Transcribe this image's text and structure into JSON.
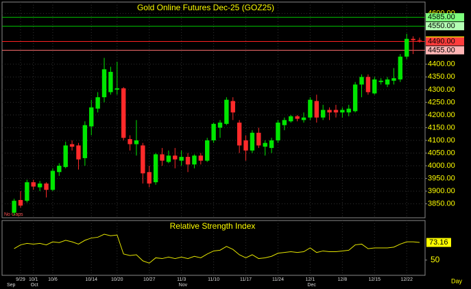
{
  "chart_data": {
    "type": "candlestick",
    "title": "Gold Online Futures Dec-25 (GOZ25)",
    "annotation": "No Gaps",
    "x_unit": "Day",
    "categories": [
      null,
      "9/29",
      null,
      "10/1",
      null,
      null,
      "10/6",
      null,
      null,
      null,
      null,
      null,
      "10/14",
      null,
      null,
      null,
      "10/20",
      null,
      null,
      null,
      null,
      "10/27",
      null,
      null,
      null,
      null,
      "11/3",
      null,
      null,
      null,
      null,
      "11/10",
      null,
      null,
      null,
      null,
      "11/17",
      null,
      null,
      null,
      null,
      "11/24",
      null,
      null,
      null,
      null,
      "12/1",
      null,
      null,
      null,
      null,
      "12/8",
      null,
      null,
      null,
      null,
      "12/15",
      null,
      null,
      null,
      null,
      "12/22",
      null,
      null
    ],
    "months": [
      "Sep",
      null,
      null,
      "Oct",
      null,
      null,
      null,
      null,
      null,
      null,
      null,
      null,
      null,
      null,
      null,
      null,
      null,
      null,
      null,
      null,
      null,
      null,
      null,
      null,
      null,
      null,
      "Nov",
      null,
      null,
      null,
      null,
      null,
      null,
      null,
      null,
      null,
      null,
      null,
      null,
      null,
      null,
      null,
      null,
      null,
      null,
      null,
      "Dec",
      null,
      null,
      null,
      null,
      null,
      null,
      null,
      null,
      null,
      null,
      null,
      null,
      null,
      null,
      null,
      null,
      null
    ],
    "open": [
      3815,
      3865,
      3862,
      3935,
      3915,
      3930,
      3905,
      3975,
      3995,
      4085,
      4080,
      4030,
      4155,
      4225,
      4270,
      4290,
      4300,
      4305,
      4105,
      4085,
      4080,
      3975,
      3935,
      4045,
      4015,
      4040,
      4020,
      4035,
      4005,
      4040,
      4020,
      4100,
      4150,
      4165,
      4255,
      4170,
      4100,
      4060,
      4130,
      4075,
      4070,
      4100,
      4160,
      4175,
      4195,
      4180,
      4190,
      4255,
      4190,
      4220,
      4220,
      4210,
      4210,
      4215,
      4320,
      4350,
      4285,
      4330,
      4320,
      4335,
      4340,
      4430,
      4500,
      4495
    ],
    "high": [
      3870,
      3900,
      3945,
      3945,
      3940,
      3935,
      3990,
      4010,
      4095,
      4100,
      4090,
      4175,
      4260,
      4290,
      4425,
      4390,
      4410,
      4310,
      4120,
      4180,
      4090,
      4000,
      4050,
      4070,
      4060,
      4070,
      4060,
      4050,
      4045,
      4050,
      4110,
      4170,
      4180,
      4270,
      4270,
      4180,
      4120,
      4140,
      4150,
      4100,
      4110,
      4180,
      4190,
      4200,
      4200,
      4210,
      4270,
      4280,
      4240,
      4230,
      4240,
      4230,
      4240,
      4330,
      4360,
      4360,
      4350,
      4345,
      4350,
      4385,
      4440,
      4520,
      4510,
      4505
    ],
    "low": [
      3805,
      3835,
      3855,
      3905,
      3900,
      3875,
      3900,
      3960,
      3990,
      4060,
      3985,
      4000,
      4120,
      4210,
      4250,
      4280,
      4280,
      4100,
      4060,
      4040,
      3930,
      3915,
      3925,
      4000,
      4010,
      3990,
      4000,
      3975,
      3990,
      4005,
      4015,
      4090,
      4110,
      4160,
      4180,
      4050,
      4020,
      4050,
      4070,
      4040,
      4050,
      4090,
      4140,
      4170,
      4175,
      4170,
      4180,
      4170,
      4180,
      4180,
      4190,
      4190,
      4195,
      4210,
      4270,
      4280,
      4280,
      4320,
      4310,
      4320,
      4330,
      4420,
      4440,
      4485
    ],
    "close": [
      3862,
      3843,
      3935,
      3918,
      3930,
      3905,
      3980,
      4000,
      4080,
      4075,
      4025,
      4160,
      4230,
      4270,
      4380,
      4370,
      4305,
      4110,
      4085,
      4100,
      3970,
      3930,
      4045,
      4020,
      4040,
      4025,
      4035,
      4005,
      4040,
      4020,
      4100,
      4165,
      4170,
      4260,
      4210,
      4080,
      4060,
      4130,
      4080,
      4090,
      4100,
      4170,
      4180,
      4195,
      4185,
      4190,
      4260,
      4190,
      4220,
      4210,
      4210,
      4220,
      4225,
      4320,
      4350,
      4290,
      4340,
      4335,
      4340,
      4345,
      4430,
      4500,
      4495,
      4493.1
    ],
    "up_color": "#00e600",
    "down_color": "#ff2a2a",
    "ylim": [
      3795,
      4645
    ],
    "yticks": [
      {
        "value": 3850,
        "label": "3850.00"
      },
      {
        "value": 3900,
        "label": "3900.00"
      },
      {
        "value": 3950,
        "label": "3950.00"
      },
      {
        "value": 4000,
        "label": "4000.00"
      },
      {
        "value": 4050,
        "label": "4050.00"
      },
      {
        "value": 4100,
        "label": "4100.00"
      },
      {
        "value": 4150,
        "label": "4150.00"
      },
      {
        "value": 4200,
        "label": "4200.00"
      },
      {
        "value": 4250,
        "label": "4250.00"
      },
      {
        "value": 4300,
        "label": "4300.00"
      },
      {
        "value": 4350,
        "label": "4350.00"
      },
      {
        "value": 4400,
        "label": "4400.00"
      },
      {
        "value": 4600,
        "label": "4600.00"
      }
    ],
    "grid": true,
    "levels": [
      {
        "value": 4585,
        "label": "4585.00",
        "color": "#00c800",
        "box": "#7dff7d"
      },
      {
        "value": 4550,
        "label": "4550.00",
        "color": "#00c800",
        "box": "#b4ffb4"
      },
      {
        "value": 4493.1,
        "label": "4493.10",
        "color": "#ffff00",
        "box": "#ffff00"
      },
      {
        "value": 4490,
        "label": "4490.00",
        "color": "#ff2020",
        "box": "#ff3c3c"
      },
      {
        "value": 4455,
        "label": "4455.00",
        "color": "#ff7070",
        "box": "#ffb4b4"
      }
    ],
    "indicator": {
      "type": "line",
      "title": "Relative Strength Index",
      "color": "#e6e600",
      "values": [
        65,
        70,
        72,
        71,
        72,
        70,
        74,
        73,
        76,
        74,
        71,
        76,
        79,
        80,
        84,
        82,
        83,
        58,
        56,
        57,
        49,
        46,
        53,
        52,
        54,
        52,
        54,
        52,
        55,
        53,
        58,
        62,
        63,
        68,
        64,
        57,
        53,
        57,
        52,
        53,
        55,
        59,
        60,
        61,
        60,
        61,
        66,
        60,
        62,
        61,
        61,
        62,
        63,
        70,
        71,
        65,
        66,
        66,
        66,
        67,
        71,
        74,
        74,
        73.16
      ],
      "ylim": [
        30,
        102
      ],
      "yticks": [
        50
      ]
    }
  }
}
